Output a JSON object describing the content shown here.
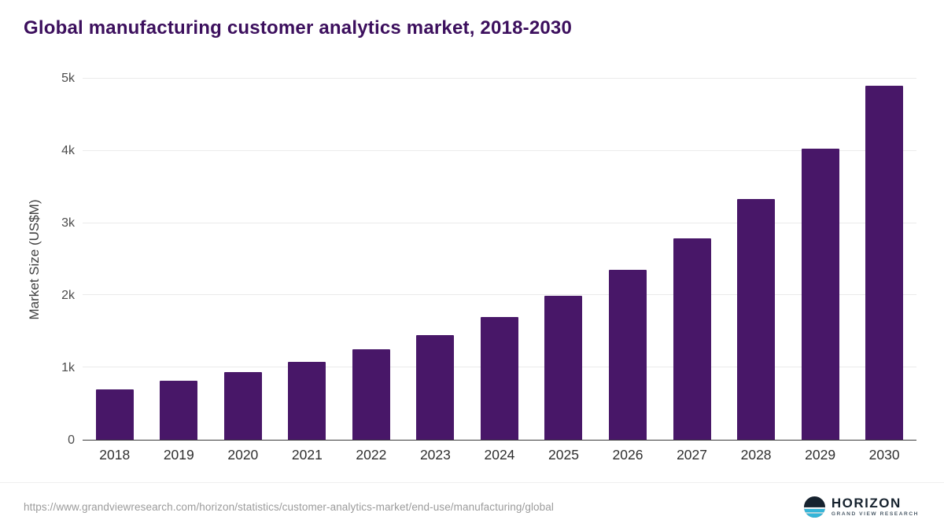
{
  "title": "Global manufacturing customer analytics market, 2018-2030",
  "chart_data": {
    "type": "bar",
    "title": "Global manufacturing customer analytics market, 2018-2030",
    "categories": [
      "2018",
      "2019",
      "2020",
      "2021",
      "2022",
      "2023",
      "2024",
      "2025",
      "2026",
      "2027",
      "2028",
      "2029",
      "2030"
    ],
    "values": [
      700,
      815,
      935,
      1080,
      1255,
      1450,
      1695,
      1990,
      2350,
      2790,
      3330,
      4030,
      4900
    ],
    "xlabel": "",
    "ylabel": "Market Size (US$M)",
    "ylim": [
      0,
      5000
    ],
    "yticks": [
      {
        "value": 0,
        "label": "0"
      },
      {
        "value": 1000,
        "label": "1k"
      },
      {
        "value": 2000,
        "label": "2k"
      },
      {
        "value": 3000,
        "label": "3k"
      },
      {
        "value": 4000,
        "label": "4k"
      },
      {
        "value": 5000,
        "label": "5k"
      }
    ],
    "grid": true,
    "legend": false,
    "bar_color": "#481768",
    "title_color": "#3c0f5d"
  },
  "footer": {
    "source_url": "https://www.grandviewresearch.com/horizon/statistics/customer-analytics-market/end-use/manufacturing/global",
    "logo": {
      "name": "HORIZON",
      "tagline": "GRAND VIEW RESEARCH",
      "icon": "horizon-globe-icon",
      "navy": "#16222e",
      "cyan": "#35b5d8"
    }
  }
}
